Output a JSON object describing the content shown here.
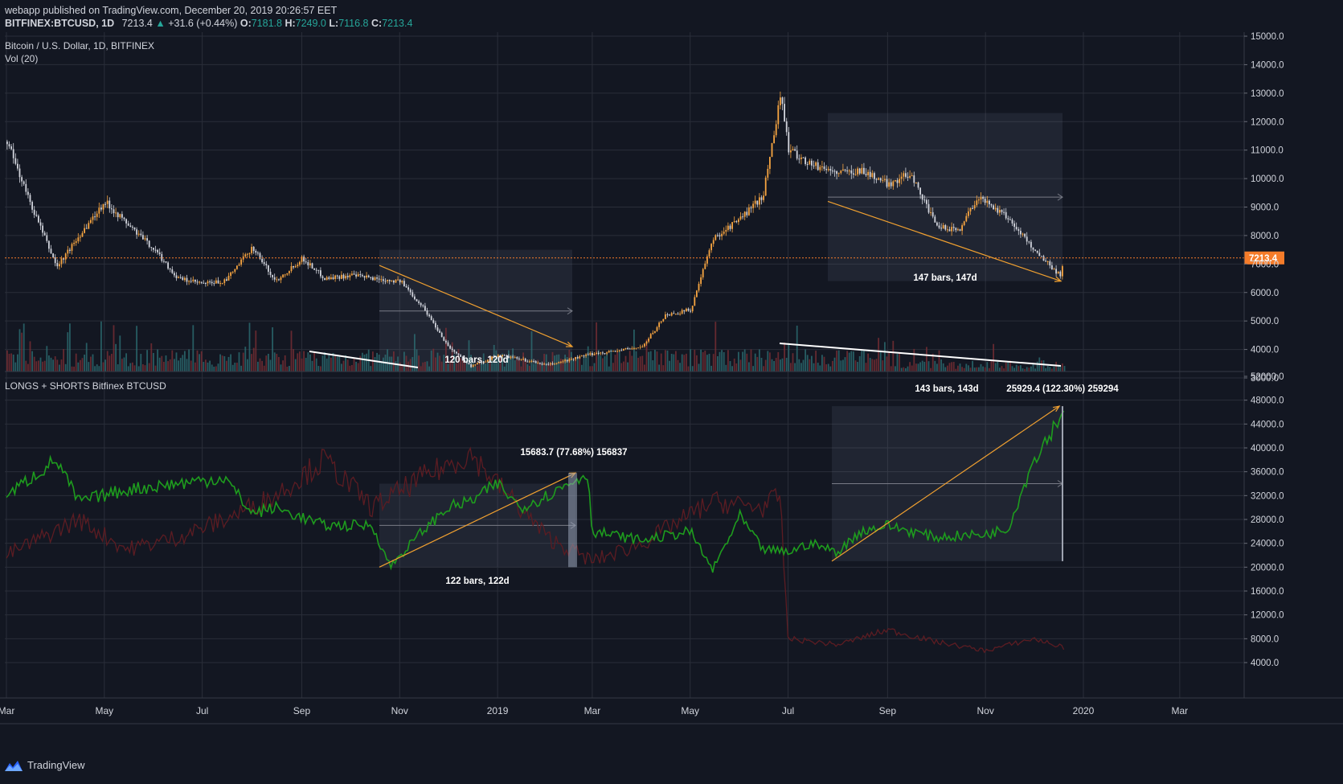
{
  "header": {
    "publisher_line": "webapp published on TradingView.com, December 20, 2019 20:26:57 EET",
    "symbol": "BITFINEX:BTCUSD, 1D",
    "last": "7213.4",
    "change": "+31.6 (+0.44%)",
    "open_label": "O:",
    "open": "7181.8",
    "high_label": "H:",
    "high": "7249.0",
    "low_label": "L:",
    "low": "7116.8",
    "close_label": "C:",
    "close": "7213.4"
  },
  "panes": {
    "price_title": "Bitcoin / U.S. Dollar, 1D, BITFINEX",
    "volume_title": "Vol (20)",
    "longs_title": "LONGS + SHORTS Bitfinex BTCUSD"
  },
  "price_tag": "7213.4",
  "annotations": {
    "range1": "120 bars, 120d",
    "range2": "147 bars, 147d",
    "range3": "122 bars, 122d",
    "range3_change": "15683.7 (77.68%) 156837",
    "range4": "143 bars, 143d",
    "range4_change": "25929.4 (122.30%) 259294"
  },
  "brand": {
    "name": "TradingView"
  },
  "colors": {
    "background": "#131722",
    "grid": "#2a2e39",
    "candle_up": "#f7a541",
    "candle_down": "#d1d4dc",
    "longs_line": "#1e9c1e",
    "shorts_line": "#5c1c22",
    "vol_up": "#2d6e73",
    "vol_down": "#7a2e35",
    "price_line": "#f57c2a",
    "trend_line": "#f0a030"
  },
  "chart_data": [
    {
      "type": "line",
      "series": [
        {
          "name": "BTCUSD",
          "x": [
            "2018-03-01",
            "2018-03-15",
            "2018-04-01",
            "2018-04-15",
            "2018-05-01",
            "2018-05-15",
            "2018-06-01",
            "2018-06-15",
            "2018-07-01",
            "2018-07-15",
            "2018-08-01",
            "2018-08-15",
            "2018-09-01",
            "2018-09-15",
            "2018-10-01",
            "2018-10-15",
            "2018-11-01",
            "2018-11-15",
            "2018-12-01",
            "2018-12-15",
            "2019-01-01",
            "2019-01-15",
            "2019-02-01",
            "2019-02-15",
            "2019-03-01",
            "2019-03-15",
            "2019-04-01",
            "2019-04-15",
            "2019-05-01",
            "2019-05-15",
            "2019-06-01",
            "2019-06-15",
            "2019-06-26",
            "2019-07-01",
            "2019-07-15",
            "2019-08-01",
            "2019-08-15",
            "2019-09-01",
            "2019-09-15",
            "2019-10-01",
            "2019-10-15",
            "2019-10-26",
            "2019-11-01",
            "2019-11-15",
            "2019-12-01",
            "2019-12-17",
            "2019-12-20"
          ],
          "values": [
            11300,
            9200,
            6900,
            8000,
            9200,
            8400,
            7500,
            6500,
            6300,
            6400,
            7600,
            6400,
            7200,
            6500,
            6600,
            6500,
            6400,
            5500,
            4100,
            3400,
            3800,
            3650,
            3450,
            3650,
            3850,
            3950,
            4100,
            5200,
            5400,
            7900,
            8600,
            9400,
            13000,
            11000,
            10500,
            10200,
            10300,
            9800,
            10200,
            8300,
            8200,
            9300,
            9200,
            8600,
            7500,
            6600,
            7213
          ]
        }
      ],
      "ylim": [
        3000,
        15000
      ],
      "y_ticks": [
        "15000.0",
        "14000.0",
        "13000.0",
        "12000.0",
        "11000.0",
        "10000.0",
        "9000.0",
        "8000.0",
        "7000.0",
        "6000.0",
        "5000.0",
        "4000.0",
        "3000.0"
      ],
      "x_ticks": [
        "Mar",
        "May",
        "Jul",
        "Sep",
        "Nov",
        "2019",
        "Mar",
        "May",
        "Jul",
        "Sep",
        "Nov",
        "2020",
        "Mar"
      ],
      "title": "Bitcoin / U.S. Dollar, 1D, BITFINEX"
    },
    {
      "type": "bar",
      "title": "Vol (20)",
      "note": "volume bars, relative heights"
    },
    {
      "type": "line",
      "title": "LONGS + SHORTS Bitfinex BTCUSD",
      "series": [
        {
          "name": "longs",
          "x": [
            "2018-03-01",
            "2018-04-01",
            "2018-04-15",
            "2018-05-15",
            "2018-06-15",
            "2018-07-15",
            "2018-08-01",
            "2018-08-15",
            "2018-09-15",
            "2018-10-15",
            "2018-10-26",
            "2018-11-15",
            "2018-12-01",
            "2018-12-15",
            "2019-01-01",
            "2019-01-15",
            "2019-02-01",
            "2019-02-26",
            "2019-03-01",
            "2019-04-01",
            "2019-05-01",
            "2019-05-15",
            "2019-06-01",
            "2019-06-15",
            "2019-07-01",
            "2019-07-15",
            "2019-08-01",
            "2019-08-15",
            "2019-09-01",
            "2019-10-01",
            "2019-11-01",
            "2019-11-15",
            "2019-12-01",
            "2019-12-17",
            "2019-12-20"
          ],
          "values": [
            32000,
            38000,
            31000,
            33000,
            34000,
            35000,
            29000,
            30000,
            27000,
            27000,
            20100,
            26000,
            30000,
            31000,
            34000,
            30000,
            32000,
            35800,
            26000,
            24500,
            26000,
            19500,
            28500,
            23000,
            22500,
            24000,
            22500,
            26000,
            27000,
            25000,
            25500,
            26500,
            38000,
            45000,
            47000
          ]
        },
        {
          "name": "shorts",
          "x": [
            "2018-03-01",
            "2018-04-15",
            "2018-05-15",
            "2018-06-15",
            "2018-07-15",
            "2018-08-15",
            "2018-09-15",
            "2018-10-15",
            "2018-11-15",
            "2018-12-15",
            "2019-01-01",
            "2019-02-01",
            "2019-03-01",
            "2019-04-01",
            "2019-05-15",
            "2019-06-15",
            "2019-06-26",
            "2019-07-01",
            "2019-08-01",
            "2019-09-01",
            "2019-10-01",
            "2019-11-01",
            "2019-12-01",
            "2019-12-20"
          ],
          "values": [
            22000,
            28000,
            23000,
            25000,
            28000,
            32000,
            38000,
            30000,
            35000,
            39000,
            34000,
            25000,
            21000,
            24000,
            31000,
            30000,
            32000,
            8000,
            7000,
            9500,
            7500,
            6000,
            8000,
            6500
          ]
        }
      ],
      "ylim": [
        4000,
        52000
      ],
      "y_ticks": [
        "52000.0",
        "48000.0",
        "44000.0",
        "40000.0",
        "36000.0",
        "32000.0",
        "28000.0",
        "24000.0",
        "20000.0",
        "16000.0",
        "12000.0",
        "8000.0",
        "4000.0"
      ]
    }
  ]
}
